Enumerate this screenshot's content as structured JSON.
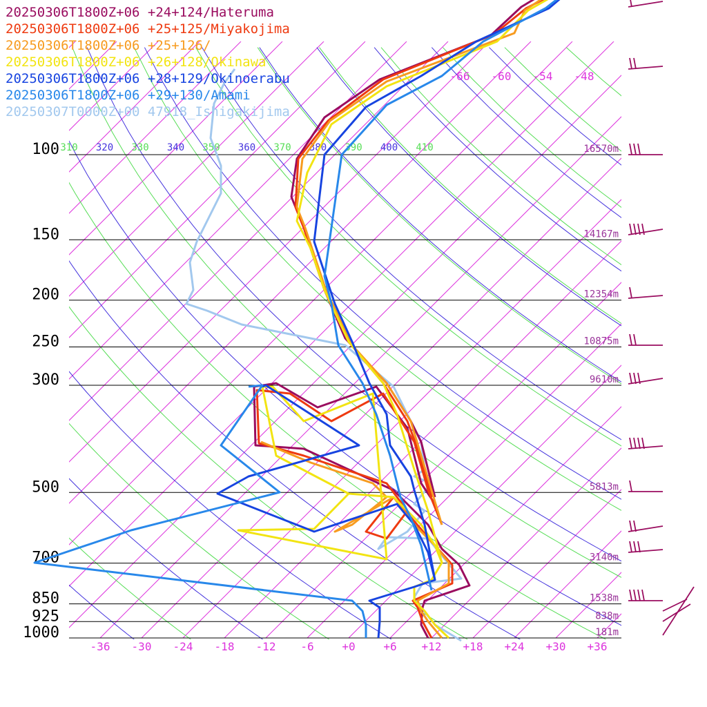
{
  "chart_data": {
    "type": "line",
    "title": "",
    "xlabel": "",
    "ylabel": "",
    "pressure_levels": [
      "100",
      "150",
      "200",
      "250",
      "300",
      "500",
      "700",
      "850",
      "925",
      "1000"
    ],
    "heights": [
      "16570m",
      "14167m",
      "12354m",
      "10875m",
      "9610m",
      "5813m",
      "3140m",
      "1538m",
      "838m",
      "181m"
    ],
    "temperature_ticks": [
      "-36",
      "-30",
      "-24",
      "-18",
      "-12",
      "-6",
      "+0",
      "+6",
      "+12",
      "+18",
      "+24",
      "+30",
      "+36"
    ],
    "theta_labels": [
      "310",
      "320",
      "330",
      "340",
      "350",
      "360",
      "370",
      "380",
      "390",
      "400",
      "410"
    ],
    "mixing_ratio_labels": [
      "-66",
      "-60",
      "-54",
      "-48"
    ],
    "colors": {
      "hateruma": "#9a0c5f",
      "miyakojima": "#ee3a10",
      "c126": "#f79b1f",
      "okinawa": "#f2e412",
      "okinoerabu": "#1744e0",
      "amami": "#2888ea",
      "ishigaki": "#a2c8ee",
      "isotherm": "#dd33dd",
      "theta": "#55dd55",
      "theta_e": "#4433dd",
      "height": "#993399"
    },
    "series": [
      {
        "name": "20250306T1800Z+06 +24+124/Hateruma",
        "color": "#9a0c5f"
      },
      {
        "name": "20250306T1800Z+06 +25+125/Miyakojima",
        "color": "#ee3a10"
      },
      {
        "name": "20250306T1800Z+06 +25+126/",
        "color": "#f79b1f"
      },
      {
        "name": "20250306T1800Z+06 +26+128/Okinawa",
        "color": "#f2e412"
      },
      {
        "name": "20250306T1800Z+06 +28+129/Okinoerabu",
        "color": "#1744e0"
      },
      {
        "name": "20250306T1800Z+06 +29+130/Amami",
        "color": "#2888ea"
      },
      {
        "name": "20250307T0000Z+00 47918_Ishigakijima",
        "color": "#a2c8ee"
      }
    ]
  }
}
